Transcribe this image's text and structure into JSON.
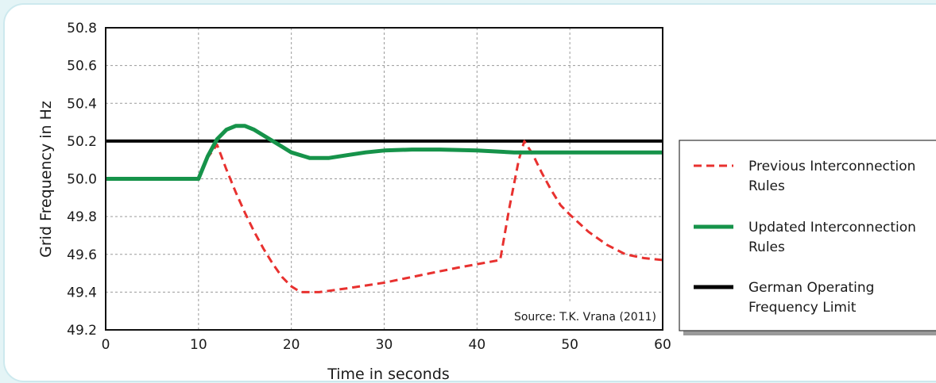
{
  "chart_data": {
    "type": "line",
    "title": "",
    "xlabel": "Time in seconds",
    "ylabel": "Grid Frequency in Hz",
    "xlim": [
      0,
      60
    ],
    "ylim": [
      49.2,
      50.8
    ],
    "x_ticks": [
      0,
      10,
      20,
      30,
      40,
      50,
      60
    ],
    "y_ticks": [
      49.2,
      49.4,
      49.6,
      49.8,
      50.0,
      50.2,
      50.4,
      50.6,
      50.8
    ],
    "y_tick_labels": [
      "49.2",
      "49.4",
      "49.6",
      "49.8",
      "50.0",
      "50.2",
      "50.4",
      "50.6",
      "50.8"
    ],
    "grid": true,
    "legend_position": "right",
    "annotation": "Source:  T.K. Vrana (2011)",
    "series": [
      {
        "name": "Previous Interconnection Rules",
        "style": "dashed",
        "color": "#e8312f",
        "x": [
          0,
          10,
          10.8,
          12,
          13,
          14,
          15,
          16,
          17,
          18,
          19,
          20,
          21,
          23,
          26,
          30,
          34,
          38,
          42.5,
          43.5,
          44.5,
          45.1,
          46,
          47,
          48,
          49,
          50,
          52,
          54,
          56,
          58,
          60
        ],
        "y": [
          50.0,
          50.0,
          50.1,
          50.18,
          50.05,
          49.93,
          49.82,
          49.72,
          49.63,
          49.55,
          49.48,
          49.43,
          49.4,
          49.4,
          49.42,
          49.45,
          49.49,
          49.53,
          49.57,
          49.85,
          50.1,
          50.2,
          50.13,
          50.03,
          49.94,
          49.86,
          49.81,
          49.72,
          49.65,
          49.6,
          49.58,
          49.57
        ]
      },
      {
        "name": "Updated Interconnection Rules",
        "style": "solid",
        "color": "#16934a",
        "x": [
          0,
          10,
          11,
          12,
          13,
          14,
          15,
          16,
          17,
          18,
          19,
          20,
          22,
          24,
          26,
          28,
          30,
          33,
          36,
          40,
          44,
          48,
          52,
          56,
          60
        ],
        "y": [
          50.0,
          50.0,
          50.12,
          50.21,
          50.26,
          50.28,
          50.28,
          50.26,
          50.23,
          50.2,
          50.17,
          50.14,
          50.11,
          50.11,
          50.125,
          50.14,
          50.15,
          50.155,
          50.155,
          50.15,
          50.14,
          50.14,
          50.14,
          50.14,
          50.14
        ]
      },
      {
        "name": "German Operating Frequency Limit",
        "style": "solid",
        "color": "#000000",
        "x": [
          0,
          60
        ],
        "y": [
          50.2,
          50.2
        ]
      }
    ],
    "legend": {
      "entries": [
        {
          "series": "Previous Interconnection Rules",
          "lines": [
            "Previous Interconnection",
            "Rules"
          ]
        },
        {
          "series": "Updated Interconnection Rules",
          "lines": [
            "Updated Interconnection",
            "Rules"
          ]
        },
        {
          "series": "German Operating Frequency Limit",
          "lines": [
            "German Operating",
            "Frequency Limit"
          ]
        }
      ]
    }
  }
}
